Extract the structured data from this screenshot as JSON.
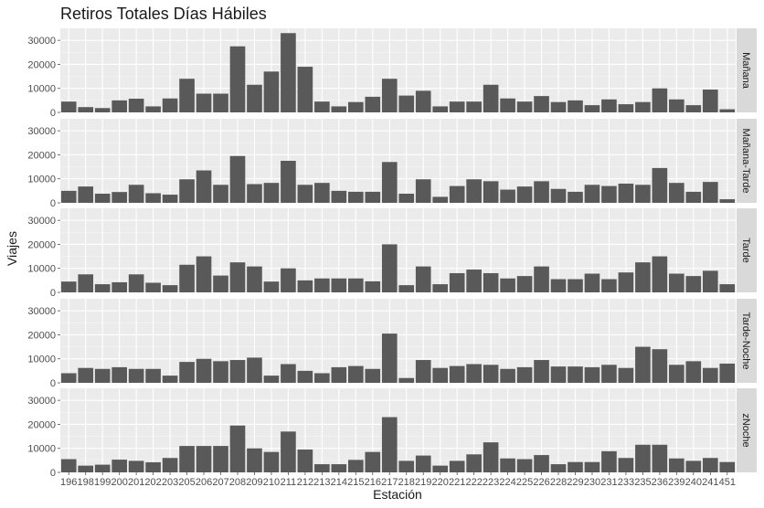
{
  "chart_data": {
    "type": "bar",
    "title": "Retiros Totales Días Hábiles",
    "xlabel": "Estación",
    "ylabel": "Viajes",
    "ylim": [
      0,
      35000
    ],
    "yticks": [
      0,
      10000,
      20000,
      30000
    ],
    "grid": true,
    "categories": [
      "196",
      "198",
      "199",
      "200",
      "201",
      "202",
      "203",
      "205",
      "206",
      "207",
      "208",
      "209",
      "210",
      "211",
      "212",
      "213",
      "214",
      "215",
      "216",
      "217",
      "218",
      "219",
      "220",
      "221",
      "222",
      "223",
      "224",
      "225",
      "226",
      "228",
      "229",
      "230",
      "231",
      "233",
      "235",
      "236",
      "239",
      "240",
      "241",
      "451"
    ],
    "series": [
      {
        "name": "Mañana",
        "values": [
          4500,
          2200,
          1800,
          5000,
          5700,
          2500,
          5800,
          14000,
          7800,
          7800,
          27500,
          11500,
          17000,
          33000,
          19000,
          4500,
          2500,
          4300,
          6500,
          14000,
          7000,
          9000,
          2500,
          4500,
          4500,
          11500,
          5800,
          4500,
          6800,
          4300,
          5000,
          3000,
          5400,
          3400,
          4300,
          10000,
          5400,
          3000,
          9500,
          1300
        ]
      },
      {
        "name": "Mañana-Tarde",
        "values": [
          5000,
          6800,
          3800,
          4500,
          7500,
          4000,
          3400,
          9800,
          13500,
          7500,
          19500,
          7800,
          8300,
          17500,
          7500,
          8300,
          5000,
          4600,
          4600,
          17000,
          3800,
          9800,
          2500,
          7000,
          9800,
          9000,
          5500,
          6800,
          9000,
          5800,
          4600,
          7500,
          7000,
          8000,
          7500,
          14500,
          8300,
          4600,
          8700,
          1500
        ]
      },
      {
        "name": "Tarde",
        "values": [
          4500,
          7500,
          3400,
          4200,
          7500,
          4000,
          3000,
          11500,
          15000,
          7000,
          12500,
          10800,
          4500,
          10000,
          5000,
          5800,
          5800,
          5800,
          4600,
          20000,
          3000,
          10800,
          3400,
          8000,
          9500,
          8000,
          5800,
          6800,
          10800,
          5500,
          5500,
          7800,
          5500,
          8300,
          12500,
          15000,
          7800,
          6800,
          9000,
          3400
        ]
      },
      {
        "name": "Tarde-Noche",
        "values": [
          4000,
          6200,
          5800,
          6500,
          5800,
          5800,
          3000,
          8700,
          10000,
          9000,
          9500,
          10500,
          3000,
          7800,
          5000,
          4000,
          6500,
          7000,
          5800,
          20500,
          2000,
          9500,
          6200,
          7000,
          7800,
          7500,
          5800,
          6500,
          9500,
          6800,
          6800,
          6500,
          7500,
          6200,
          15000,
          14000,
          7500,
          9000,
          6200,
          8000
        ]
      },
      {
        "name": "zNoche",
        "values": [
          5500,
          2800,
          3200,
          5300,
          4800,
          4200,
          6000,
          11000,
          11000,
          11000,
          19500,
          10000,
          8500,
          17000,
          9500,
          3400,
          3400,
          5200,
          8500,
          23000,
          4800,
          7000,
          2800,
          4800,
          7500,
          12500,
          5800,
          5500,
          7200,
          3400,
          4300,
          4300,
          8800,
          6000,
          11500,
          11500,
          5800,
          4800,
          6000,
          4300
        ]
      }
    ]
  }
}
